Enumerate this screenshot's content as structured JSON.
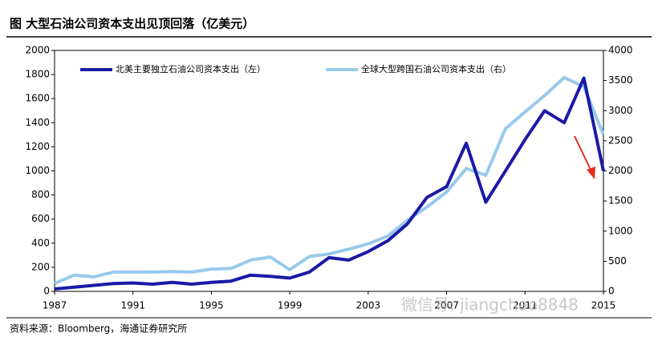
{
  "chart_data": {
    "type": "line",
    "title": "图  大型石油公司资本支出见顶回落（亿美元）",
    "source": "资料来源：Bloomberg，海通证券研究所",
    "watermark": "微信号: jiangchao8848",
    "x": [
      1987,
      1988,
      1989,
      1990,
      1991,
      1992,
      1993,
      1994,
      1995,
      1996,
      1997,
      1998,
      1999,
      2000,
      2001,
      2002,
      2003,
      2004,
      2005,
      2006,
      2007,
      2008,
      2009,
      2010,
      2011,
      2012,
      2013,
      2014,
      2015
    ],
    "xlim": [
      1987,
      2015
    ],
    "xticks": [
      1987,
      1991,
      1995,
      1999,
      2003,
      2007,
      2011,
      2015
    ],
    "ylim": [
      0,
      2000
    ],
    "yticks": [
      0,
      200,
      400,
      600,
      800,
      1000,
      1200,
      1400,
      1600,
      1800,
      2000
    ],
    "y2lim": [
      0,
      4000
    ],
    "y2ticks": [
      0,
      500,
      1000,
      1500,
      2000,
      2500,
      3000,
      3500,
      4000
    ],
    "legend": "top",
    "series": [
      {
        "name": "北美主要独立石油公司资本支出（左）",
        "color": "#1a1aa6",
        "values": [
          20,
          35,
          50,
          65,
          70,
          60,
          75,
          60,
          75,
          85,
          135,
          125,
          110,
          160,
          280,
          260,
          330,
          420,
          560,
          780,
          870,
          1230,
          740,
          1000,
          1260,
          1500,
          1400,
          1770,
          1000
        ]
      },
      {
        "name": "全球大型跨国石油公司资本支出（右）",
        "color": "#99c9ec",
        "axis": "y2",
        "values": [
          130,
          270,
          240,
          320,
          320,
          320,
          330,
          320,
          370,
          380,
          520,
          570,
          360,
          580,
          620,
          700,
          790,
          920,
          1180,
          1400,
          1650,
          2040,
          1930,
          2700,
          2980,
          3250,
          3550,
          3400,
          2600
        ]
      }
    ]
  }
}
